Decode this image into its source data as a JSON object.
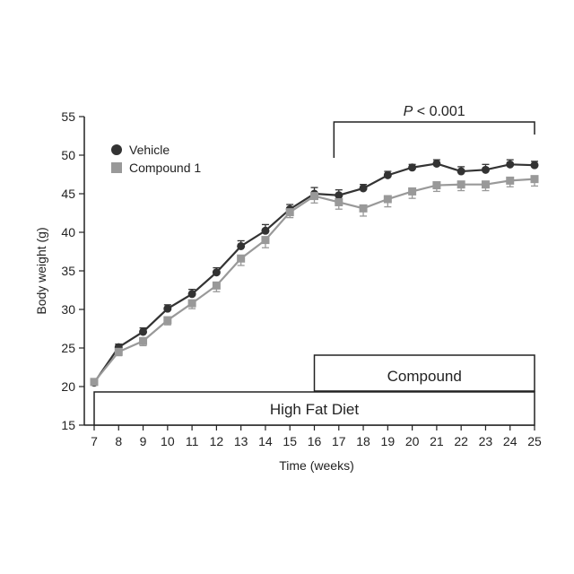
{
  "chart_data": {
    "type": "line",
    "xlabel": "Time (weeks)",
    "ylabel": "Body weight (g)",
    "xlim": [
      7,
      25
    ],
    "ylim": [
      15,
      55
    ],
    "xticks": [
      7,
      8,
      9,
      10,
      11,
      12,
      13,
      14,
      15,
      16,
      17,
      18,
      19,
      20,
      21,
      22,
      23,
      24,
      25
    ],
    "yticks": [
      15,
      20,
      25,
      30,
      35,
      40,
      45,
      50,
      55
    ],
    "legend_position": "top-left",
    "grid": false,
    "x": [
      7,
      8,
      9,
      10,
      11,
      12,
      13,
      14,
      15,
      16,
      17,
      18,
      19,
      20,
      21,
      22,
      23,
      24,
      25
    ],
    "series": [
      {
        "name": "Vehicle",
        "color": "#333333",
        "marker": "circle",
        "values": [
          20.5,
          25.1,
          27.1,
          30.1,
          32.0,
          34.8,
          38.2,
          40.2,
          43.0,
          45.0,
          44.8,
          45.7,
          47.4,
          48.4,
          48.9,
          47.9,
          48.1,
          48.8,
          48.7
        ],
        "errors": [
          0.3,
          0.4,
          0.5,
          0.5,
          0.6,
          0.6,
          0.7,
          0.8,
          0.6,
          0.8,
          0.7,
          0.5,
          0.5,
          0.4,
          0.5,
          0.6,
          0.7,
          0.6,
          0.5
        ]
      },
      {
        "name": "Compound 1",
        "color": "#999999",
        "marker": "square",
        "values": [
          20.6,
          24.5,
          25.9,
          28.6,
          30.8,
          33.1,
          36.6,
          39.0,
          42.6,
          44.7,
          43.9,
          43.1,
          44.3,
          45.3,
          46.1,
          46.2,
          46.2,
          46.7,
          46.9
        ],
        "errors": [
          0.3,
          0.5,
          0.6,
          0.6,
          0.7,
          0.8,
          0.9,
          1.0,
          0.7,
          0.9,
          0.9,
          1.0,
          1.0,
          0.9,
          0.8,
          0.8,
          0.8,
          0.8,
          0.9
        ]
      }
    ],
    "annotations": {
      "significance": {
        "label": "P < 0.001",
        "p_symbol": "P",
        "p_rest": " < 0.001",
        "x_start": 16.8,
        "x_end": 25
      },
      "compound_bar": {
        "label": "Compound",
        "x_start": 16,
        "x_end": 25
      },
      "diet_bar": {
        "label": "High Fat Diet",
        "x_start": 7,
        "x_end": 25
      }
    }
  }
}
